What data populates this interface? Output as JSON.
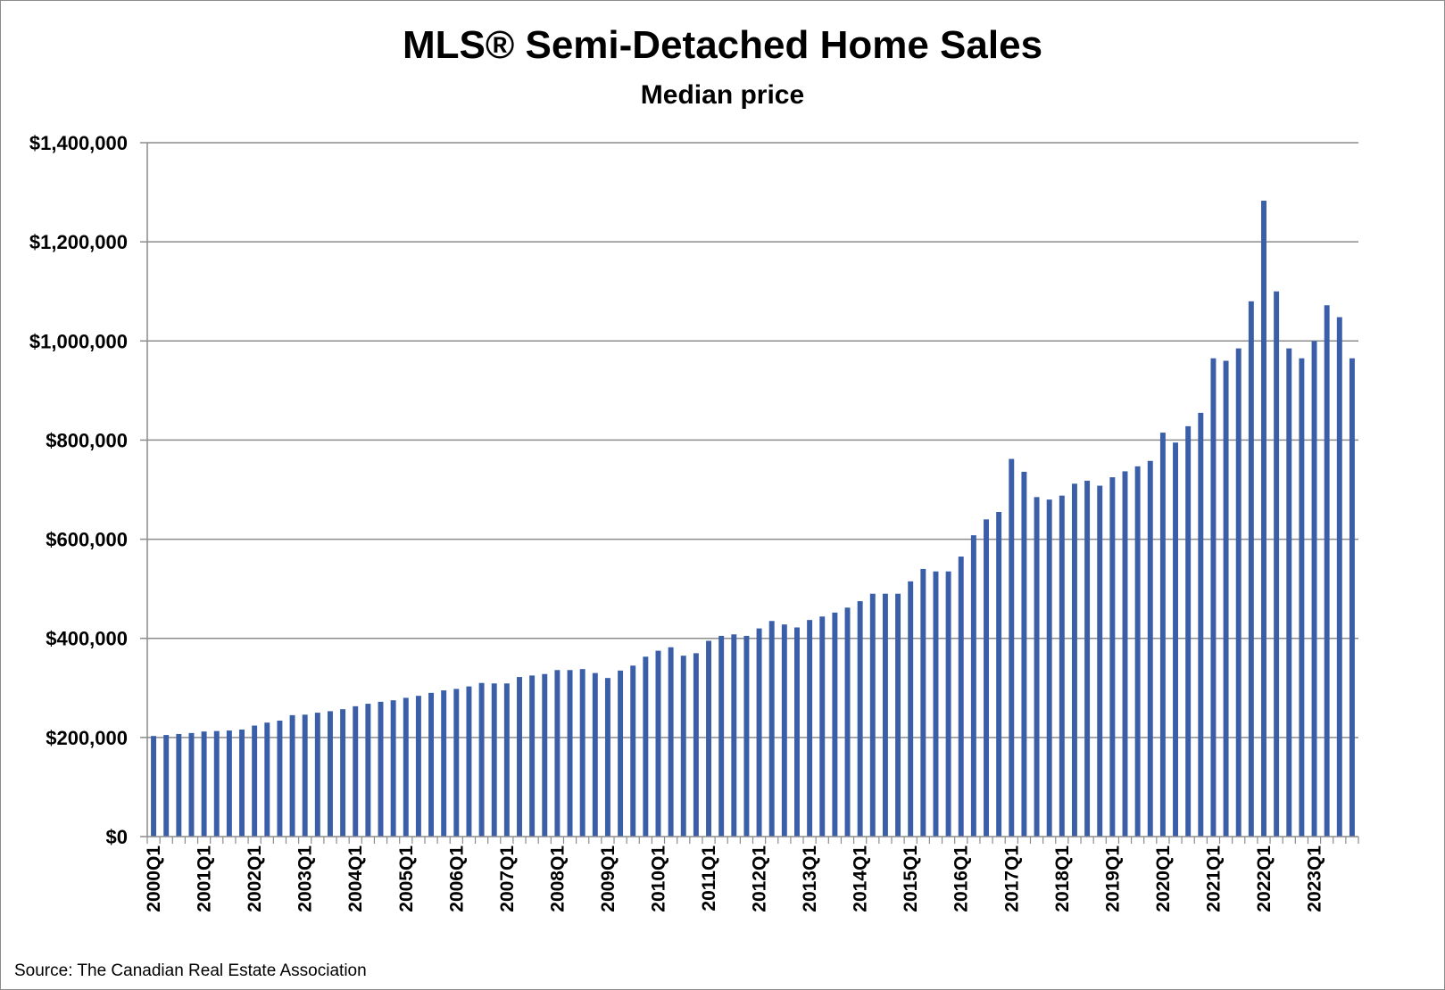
{
  "chart_data": {
    "type": "bar",
    "title": "MLS® Semi-Detached Home Sales",
    "subtitle": "Median price",
    "xlabel": "",
    "ylabel": "",
    "ylim": [
      0,
      1400000
    ],
    "yticks": [
      {
        "value": 0,
        "label": "$0"
      },
      {
        "value": 200000,
        "label": "$200,000"
      },
      {
        "value": 400000,
        "label": "$400,000"
      },
      {
        "value": 600000,
        "label": "$600,000"
      },
      {
        "value": 800000,
        "label": "$800,000"
      },
      {
        "value": 1000000,
        "label": "$1,000,000"
      },
      {
        "value": 1200000,
        "label": "$1,200,000"
      },
      {
        "value": 1400000,
        "label": "$1,400,000"
      }
    ],
    "grid": true,
    "bar_color": "#3a5fa8",
    "x_tick_labels": [
      "2000Q1",
      "2001Q1",
      "2002Q1",
      "2003Q1",
      "2004Q1",
      "2005Q1",
      "2006Q1",
      "2007Q1",
      "2008Q1",
      "2009Q1",
      "2010Q1",
      "2011Q1",
      "2012Q1",
      "2013Q1",
      "2014Q1",
      "2015Q1",
      "2016Q1",
      "2017Q1",
      "2018Q1",
      "2019Q1",
      "2020Q1",
      "2021Q1",
      "2022Q1",
      "2023Q1"
    ],
    "categories": [
      "2000Q1",
      "2000Q2",
      "2000Q3",
      "2000Q4",
      "2001Q1",
      "2001Q2",
      "2001Q3",
      "2001Q4",
      "2002Q1",
      "2002Q2",
      "2002Q3",
      "2002Q4",
      "2003Q1",
      "2003Q2",
      "2003Q3",
      "2003Q4",
      "2004Q1",
      "2004Q2",
      "2004Q3",
      "2004Q4",
      "2005Q1",
      "2005Q2",
      "2005Q3",
      "2005Q4",
      "2006Q1",
      "2006Q2",
      "2006Q3",
      "2006Q4",
      "2007Q1",
      "2007Q2",
      "2007Q3",
      "2007Q4",
      "2008Q1",
      "2008Q2",
      "2008Q3",
      "2008Q4",
      "2009Q1",
      "2009Q2",
      "2009Q3",
      "2009Q4",
      "2010Q1",
      "2010Q2",
      "2010Q3",
      "2010Q4",
      "2011Q1",
      "2011Q2",
      "2011Q3",
      "2011Q4",
      "2012Q1",
      "2012Q2",
      "2012Q3",
      "2012Q4",
      "2013Q1",
      "2013Q2",
      "2013Q3",
      "2013Q4",
      "2014Q1",
      "2014Q2",
      "2014Q3",
      "2014Q4",
      "2015Q1",
      "2015Q2",
      "2015Q3",
      "2015Q4",
      "2016Q1",
      "2016Q2",
      "2016Q3",
      "2016Q4",
      "2017Q1",
      "2017Q2",
      "2017Q3",
      "2017Q4",
      "2018Q1",
      "2018Q2",
      "2018Q3",
      "2018Q4",
      "2019Q1",
      "2019Q2",
      "2019Q3",
      "2019Q4",
      "2020Q1",
      "2020Q2",
      "2020Q3",
      "2020Q4",
      "2021Q1",
      "2021Q2",
      "2021Q3",
      "2021Q4",
      "2022Q1",
      "2022Q2",
      "2022Q3",
      "2022Q4",
      "2023Q1",
      "2023Q2",
      "2023Q3",
      "2023Q4"
    ],
    "values": [
      203000,
      205000,
      207000,
      209000,
      212000,
      213000,
      214000,
      216000,
      224000,
      230000,
      234000,
      245000,
      246000,
      250000,
      253000,
      257000,
      263000,
      268000,
      272000,
      275000,
      280000,
      284000,
      290000,
      295000,
      298000,
      303000,
      310000,
      309000,
      309000,
      322000,
      325000,
      328000,
      336000,
      336000,
      338000,
      330000,
      320000,
      335000,
      345000,
      363000,
      375000,
      382000,
      365000,
      370000,
      395000,
      405000,
      408000,
      405000,
      420000,
      435000,
      428000,
      422000,
      437000,
      444000,
      452000,
      462000,
      475000,
      490000,
      490000,
      490000,
      515000,
      540000,
      535000,
      535000,
      565000,
      608000,
      640000,
      655000,
      762000,
      736000,
      685000,
      680000,
      688000,
      712000,
      718000,
      708000,
      725000,
      737000,
      747000,
      758000,
      815000,
      795000,
      828000,
      855000,
      965000,
      960000,
      985000,
      1080000,
      1283000,
      1100000,
      985000,
      965000,
      1000000,
      1072000,
      1048000,
      965000
    ]
  },
  "source": "Source: The Canadian Real Estate Association"
}
